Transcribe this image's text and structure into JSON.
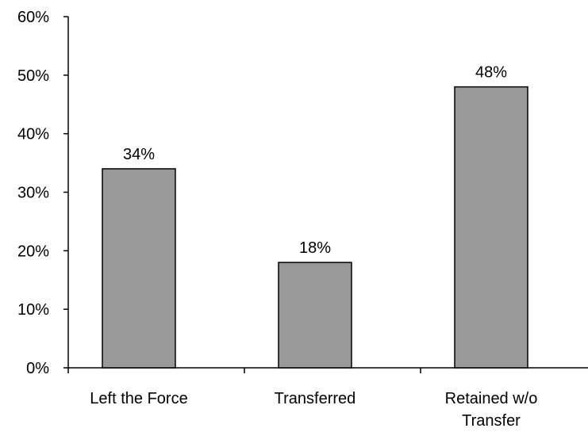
{
  "chart_data": {
    "type": "bar",
    "categories": [
      [
        "Left the Force"
      ],
      [
        "Transferred"
      ],
      [
        "Retained w/o",
        "Transfer"
      ]
    ],
    "values": [
      34,
      18,
      48
    ],
    "data_labels": [
      "34%",
      "18%",
      "48%"
    ],
    "y_ticks": [
      0,
      10,
      20,
      30,
      40,
      50,
      60
    ],
    "y_tick_labels": [
      "0%",
      "10%",
      "20%",
      "30%",
      "40%",
      "50%",
      "60%"
    ],
    "ylim": [
      0,
      60
    ],
    "grid": false,
    "legend": "none",
    "title": "",
    "xlabel": "",
    "ylabel": "",
    "colors": {
      "bar_fill": "#999999",
      "bar_stroke": "#000000",
      "axis": "#000000",
      "text": "#000000"
    }
  }
}
